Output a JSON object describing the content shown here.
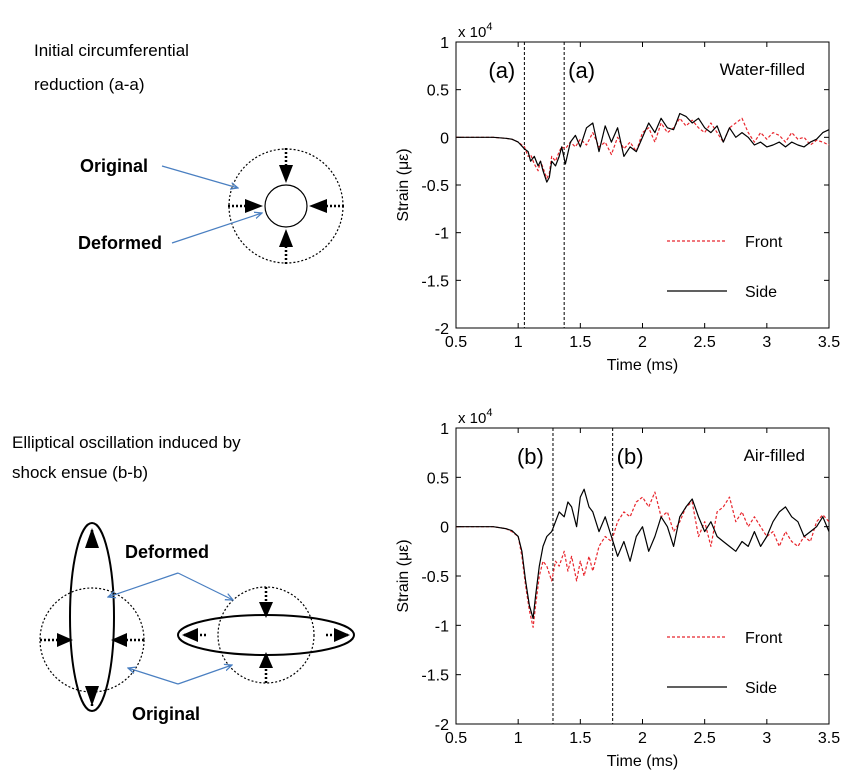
{
  "left_panel": {
    "top_caption_line1": "Initial circumferential",
    "top_caption_line2": "reduction  (a-a)",
    "top_original_label": "Original",
    "top_deformed_label": "Deformed",
    "bottom_caption_line1": "Elliptical oscillation induced by",
    "bottom_caption_line2": "shock ensue (b-b)",
    "bottom_deformed_label": "Deformed",
    "bottom_original_label": "Original"
  },
  "colors": {
    "front": "#e8262d",
    "side": "#000000",
    "arrow_line": "#4a7fc1"
  },
  "chart_data": [
    {
      "type": "line",
      "title": "",
      "annotation": "Water-filled",
      "xlabel": "Time (ms)",
      "ylabel": "Strain (με)",
      "multiplier": "x 10",
      "multiplier_exp": "4",
      "xlim": [
        0.5,
        3.5
      ],
      "ylim": [
        -2,
        1
      ],
      "xticks": [
        "0.5",
        "1",
        "1.5",
        "2",
        "2.5",
        "3",
        "3.5"
      ],
      "yticks": [
        "1",
        "0.5",
        "0",
        "-0.5",
        "-1",
        "-1.5",
        "-2"
      ],
      "vlines": [
        1.05,
        1.37
      ],
      "vline_labels": [
        "(a)",
        "(a)"
      ],
      "legend_position": "lower-right",
      "series": [
        {
          "name": "Front",
          "style": "dashed",
          "x": [
            0.5,
            0.8,
            0.9,
            0.95,
            1.0,
            1.05,
            1.08,
            1.1,
            1.13,
            1.16,
            1.18,
            1.2,
            1.23,
            1.25,
            1.27,
            1.3,
            1.33,
            1.35,
            1.38,
            1.42,
            1.46,
            1.5,
            1.55,
            1.6,
            1.65,
            1.7,
            1.75,
            1.8,
            1.85,
            1.9,
            1.95,
            2.0,
            2.05,
            2.1,
            2.15,
            2.2,
            2.25,
            2.3,
            2.35,
            2.4,
            2.45,
            2.5,
            2.55,
            2.6,
            2.65,
            2.7,
            2.75,
            2.8,
            2.85,
            2.9,
            2.95,
            3.0,
            3.05,
            3.1,
            3.15,
            3.2,
            3.25,
            3.3,
            3.35,
            3.4,
            3.45,
            3.5
          ],
          "y": [
            0,
            0,
            -0.01,
            -0.02,
            -0.05,
            -0.1,
            -0.2,
            -0.18,
            -0.28,
            -0.35,
            -0.25,
            -0.32,
            -0.43,
            -0.38,
            -0.2,
            -0.25,
            -0.15,
            -0.1,
            -0.12,
            -0.05,
            -0.1,
            -0.02,
            -0.08,
            0.05,
            -0.1,
            -0.05,
            -0.18,
            0.0,
            -0.12,
            -0.05,
            -0.15,
            0.05,
            0.1,
            -0.05,
            0.15,
            0.05,
            0.1,
            0.2,
            0.12,
            0.18,
            0.1,
            0.05,
            0.15,
            0.05,
            -0.05,
            0.1,
            0.15,
            0.2,
            0.05,
            -0.05,
            0.05,
            -0.02,
            0.05,
            0.02,
            -0.05,
            0.05,
            -0.02,
            0.0,
            -0.08,
            -0.03,
            -0.05,
            -0.08
          ]
        },
        {
          "name": "Side",
          "style": "solid",
          "x": [
            0.5,
            0.8,
            0.9,
            0.95,
            1.0,
            1.05,
            1.08,
            1.1,
            1.13,
            1.16,
            1.18,
            1.2,
            1.23,
            1.25,
            1.27,
            1.3,
            1.33,
            1.35,
            1.38,
            1.42,
            1.46,
            1.5,
            1.55,
            1.6,
            1.65,
            1.7,
            1.75,
            1.8,
            1.85,
            1.9,
            1.95,
            2.0,
            2.05,
            2.1,
            2.15,
            2.2,
            2.25,
            2.3,
            2.35,
            2.4,
            2.45,
            2.5,
            2.55,
            2.6,
            2.65,
            2.7,
            2.75,
            2.8,
            2.85,
            2.9,
            2.95,
            3.0,
            3.05,
            3.1,
            3.15,
            3.2,
            3.25,
            3.3,
            3.35,
            3.4,
            3.45,
            3.5
          ],
          "y": [
            0,
            0,
            -0.01,
            -0.02,
            -0.05,
            -0.12,
            -0.15,
            -0.25,
            -0.2,
            -0.3,
            -0.25,
            -0.35,
            -0.47,
            -0.42,
            -0.25,
            -0.3,
            -0.2,
            -0.1,
            -0.28,
            -0.05,
            0.02,
            -0.1,
            0.1,
            0.15,
            -0.15,
            0.12,
            -0.05,
            0.1,
            -0.2,
            -0.1,
            -0.15,
            0.0,
            0.15,
            0.05,
            0.2,
            0.1,
            0.08,
            0.25,
            0.22,
            0.15,
            0.2,
            0.1,
            0.05,
            0.12,
            -0.05,
            0.1,
            0.0,
            0.05,
            0.0,
            -0.08,
            -0.05,
            -0.1,
            -0.08,
            -0.05,
            -0.1,
            -0.05,
            -0.08,
            -0.1,
            -0.05,
            -0.02,
            0.05,
            0.08
          ]
        }
      ]
    },
    {
      "type": "line",
      "title": "",
      "annotation": "Air-filled",
      "xlabel": "Time (ms)",
      "ylabel": "Strain (με)",
      "multiplier": "x 10",
      "multiplier_exp": "4",
      "xlim": [
        0.5,
        3.5
      ],
      "ylim": [
        -2,
        1
      ],
      "xticks": [
        "0.5",
        "1",
        "1.5",
        "2",
        "2.5",
        "3",
        "3.5"
      ],
      "yticks": [
        "1",
        "0.5",
        "0",
        "-0.5",
        "-1",
        "-1.5",
        "-2"
      ],
      "vlines": [
        1.28,
        1.76
      ],
      "vline_labels": [
        "(b)",
        "(b)"
      ],
      "legend_position": "lower-right",
      "series": [
        {
          "name": "Front",
          "style": "dashed",
          "x": [
            0.5,
            0.8,
            0.9,
            0.95,
            1.0,
            1.03,
            1.06,
            1.09,
            1.12,
            1.14,
            1.17,
            1.2,
            1.23,
            1.27,
            1.3,
            1.33,
            1.37,
            1.4,
            1.43,
            1.47,
            1.5,
            1.53,
            1.57,
            1.6,
            1.65,
            1.7,
            1.75,
            1.8,
            1.85,
            1.9,
            1.95,
            2.0,
            2.05,
            2.1,
            2.15,
            2.2,
            2.25,
            2.3,
            2.35,
            2.4,
            2.45,
            2.5,
            2.55,
            2.6,
            2.65,
            2.7,
            2.75,
            2.8,
            2.85,
            2.9,
            2.95,
            3.0,
            3.05,
            3.1,
            3.15,
            3.2,
            3.25,
            3.3,
            3.35,
            3.4,
            3.45,
            3.5
          ],
          "y": [
            0,
            0,
            -0.02,
            -0.05,
            -0.1,
            -0.3,
            -0.6,
            -0.85,
            -1.02,
            -0.8,
            -0.5,
            -0.35,
            -0.4,
            -0.55,
            -0.35,
            -0.4,
            -0.25,
            -0.45,
            -0.3,
            -0.55,
            -0.35,
            -0.5,
            -0.3,
            -0.45,
            -0.2,
            -0.1,
            -0.15,
            0.05,
            0.15,
            0.1,
            0.25,
            0.3,
            0.2,
            0.35,
            0.1,
            0.15,
            -0.05,
            0.05,
            0.2,
            0.25,
            -0.1,
            0.05,
            -0.2,
            0.15,
            0.2,
            0.3,
            0.05,
            0.15,
            0.0,
            0.1,
            0.0,
            -0.1,
            -0.05,
            -0.2,
            -0.05,
            -0.15,
            -0.2,
            -0.1,
            -0.15,
            0.05,
            0.12,
            0.05
          ]
        },
        {
          "name": "Side",
          "style": "solid",
          "x": [
            0.5,
            0.8,
            0.9,
            0.95,
            1.0,
            1.03,
            1.06,
            1.09,
            1.12,
            1.14,
            1.17,
            1.2,
            1.23,
            1.27,
            1.3,
            1.33,
            1.37,
            1.4,
            1.43,
            1.47,
            1.5,
            1.53,
            1.57,
            1.6,
            1.65,
            1.7,
            1.75,
            1.8,
            1.85,
            1.9,
            1.95,
            2.0,
            2.05,
            2.1,
            2.15,
            2.2,
            2.25,
            2.3,
            2.35,
            2.4,
            2.45,
            2.5,
            2.55,
            2.6,
            2.65,
            2.7,
            2.75,
            2.8,
            2.85,
            2.9,
            2.95,
            3.0,
            3.05,
            3.1,
            3.15,
            3.2,
            3.25,
            3.3,
            3.35,
            3.4,
            3.45,
            3.5
          ],
          "y": [
            0,
            0,
            -0.02,
            -0.04,
            -0.1,
            -0.25,
            -0.55,
            -0.8,
            -0.93,
            -0.7,
            -0.4,
            -0.2,
            -0.1,
            -0.05,
            0.05,
            0.15,
            0.1,
            0.25,
            0.2,
            0.0,
            0.3,
            0.38,
            0.2,
            0.15,
            -0.05,
            0.1,
            -0.1,
            -0.3,
            -0.15,
            -0.35,
            -0.1,
            0.0,
            -0.25,
            -0.1,
            0.1,
            0.0,
            -0.2,
            0.1,
            0.2,
            0.28,
            0.1,
            -0.05,
            0.05,
            -0.1,
            -0.15,
            -0.2,
            -0.25,
            -0.15,
            -0.2,
            -0.05,
            -0.2,
            -0.1,
            0.05,
            0.15,
            0.2,
            0.1,
            0.05,
            -0.1,
            -0.05,
            0.0,
            0.1,
            -0.05
          ]
        }
      ]
    }
  ]
}
